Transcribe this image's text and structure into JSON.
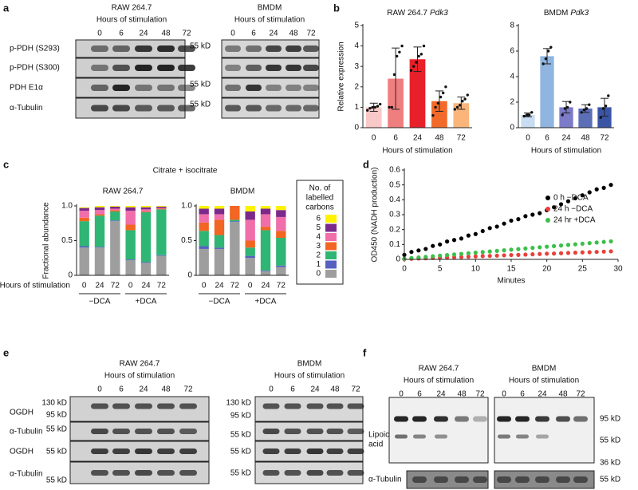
{
  "panel_labels": [
    "a",
    "b",
    "c",
    "d",
    "e",
    "f"
  ],
  "blots": {
    "a": {
      "headers": [
        {
          "cell_line": "RAW 264.7",
          "axis": "Hours of stimulation",
          "lanes": [
            "0",
            "6",
            "24",
            "48",
            "72"
          ]
        },
        {
          "cell_line": "BMDM",
          "axis": "Hours of stimulation",
          "lanes": [
            "0",
            "6",
            "24",
            "48",
            "72"
          ]
        }
      ],
      "rows": [
        "p-PDH (S293)",
        "p-PDH (S300)",
        "PDH E1α",
        "α-Tubulin"
      ],
      "markers": [
        "55 kD",
        "55 kD",
        "55 kD"
      ]
    },
    "e": {
      "headers": [
        {
          "cell_line": "RAW 264.7",
          "axis": "Hours of stimulation",
          "lanes": [
            "0",
            "6",
            "24",
            "48",
            "72"
          ]
        },
        {
          "cell_line": "BMDM",
          "axis": "Hours of stimulation",
          "lanes": [
            "0",
            "6",
            "24",
            "48",
            "72"
          ]
        }
      ],
      "rows": [
        "OGDH",
        "α-Tubulin",
        "OGDH",
        "α-Tubulin"
      ],
      "markers_left": [
        "130 kD",
        "95 kD",
        "55 kD",
        "55 kD",
        "55 kD"
      ],
      "markers_right": [
        "130 kD",
        "95 kD",
        "55 kD",
        "55 kD",
        "55 kD"
      ]
    },
    "f": {
      "headers": [
        {
          "cell_line": "RAW 264.7",
          "axis": "Hours of stimulation",
          "lanes": [
            "0",
            "6",
            "24",
            "48",
            "72"
          ]
        },
        {
          "cell_line": "BMDM",
          "axis": "Hours of stimulation",
          "lanes": [
            "0",
            "6",
            "24",
            "48",
            "72"
          ]
        }
      ],
      "band_label": [
        "Lipoic",
        "acid"
      ],
      "markers": [
        "95 kD",
        "55 kD",
        "36 kD"
      ],
      "loading_label": "α-Tubulin",
      "loading_marker": "55 kD"
    }
  },
  "chart_data": [
    {
      "type": "bar",
      "title": [
        "RAW 264.7",
        "Pdk3"
      ],
      "categories": [
        "0",
        "6",
        "24",
        "48",
        "72"
      ],
      "values": [
        1.0,
        2.4,
        3.35,
        1.3,
        1.2
      ],
      "errors": [
        0.2,
        1.5,
        0.6,
        0.5,
        0.3
      ],
      "points": [
        [
          0.85,
          0.95,
          1.0,
          1.0,
          1.05,
          1.15
        ],
        [
          1.0,
          1.0,
          2.6,
          3.5,
          3.7,
          4.0
        ],
        [
          2.8,
          3.0,
          3.2,
          3.5,
          3.6,
          4.0
        ],
        [
          0.6,
          1.0,
          1.2,
          1.5,
          1.7,
          2.0
        ],
        [
          0.9,
          1.0,
          1.1,
          1.3,
          1.4,
          1.6
        ]
      ],
      "colors": [
        "#f8c9c8",
        "#ef7f7f",
        "#e8202a",
        "#f26b2a",
        "#fbb57a"
      ],
      "ylim": [
        0,
        5
      ],
      "yticks": [
        0,
        1,
        2,
        3,
        4,
        5
      ],
      "ylabel": "Relative expression",
      "xlabel": "Hours of stimulation"
    },
    {
      "type": "bar",
      "title": [
        "BMDM",
        "Pdk3"
      ],
      "categories": [
        "0",
        "6",
        "24",
        "48",
        "72"
      ],
      "values": [
        1.0,
        5.6,
        1.6,
        1.5,
        1.6
      ],
      "errors": [
        0.15,
        0.6,
        0.45,
        0.3,
        0.7
      ],
      "points": [
        [
          0.9,
          1.0,
          1.0,
          1.2
        ],
        [
          5.0,
          5.4,
          6.0,
          6.3
        ],
        [
          1.0,
          1.5,
          1.6,
          2.0
        ],
        [
          1.2,
          1.4,
          1.5,
          1.8
        ],
        [
          0.8,
          1.5,
          1.7,
          2.5
        ]
      ],
      "colors": [
        "#c8dcf2",
        "#8fb5e0",
        "#7b7bc8",
        "#5b6fb8",
        "#3a55a5"
      ],
      "ylim": [
        0,
        8
      ],
      "yticks": [
        0,
        2,
        4,
        6,
        8
      ],
      "xlabel": "Hours of stimulation"
    },
    {
      "type": "stacked_bar",
      "title": "Citrate + isocitrate",
      "subtitle": "RAW 264.7",
      "categories": [
        "0",
        "24",
        "72",
        "0",
        "24",
        "72"
      ],
      "groups": [
        "−DCA",
        "+DCA"
      ],
      "xlabel": "Hours of stimulation",
      "ylabel": "Fractional abundance",
      "ylim": [
        0,
        1
      ],
      "yticks": [
        0,
        0.5,
        {
          "value": 1,
          "label": "1.0"
        }
      ],
      "series": [
        {
          "color": "#9e9e9e",
          "values": [
            0.4,
            0.4,
            0.78,
            0.22,
            0.18,
            0.28
          ]
        },
        {
          "color": "#5560c0",
          "values": [
            0.02,
            0.01,
            0.01,
            0.01,
            0.01,
            0.01
          ]
        },
        {
          "color": "#2fb574",
          "values": [
            0.36,
            0.45,
            0.13,
            0.42,
            0.72,
            0.66
          ]
        },
        {
          "color": "#f26522",
          "values": [
            0.05,
            0.02,
            0.02,
            0.08,
            0.01,
            0.01
          ]
        },
        {
          "color": "#f06eaa",
          "values": [
            0.1,
            0.06,
            0.02,
            0.2,
            0.03,
            0.01
          ]
        },
        {
          "color": "#7b2a8c",
          "values": [
            0.04,
            0.04,
            0.03,
            0.05,
            0.03,
            0.02
          ]
        },
        {
          "color": "#fff200",
          "values": [
            0.01,
            0.02,
            0.01,
            0.02,
            0.02,
            0.01
          ]
        }
      ]
    },
    {
      "type": "stacked_bar",
      "subtitle": "BMDM",
      "categories": [
        "0",
        "24",
        "72",
        "0",
        "24",
        "72"
      ],
      "groups": [
        "−DCA",
        "+DCA"
      ],
      "ylim": [
        0,
        1
      ],
      "yticks": [
        0,
        0.5,
        {
          "value": 1,
          "label": "1.0"
        }
      ],
      "legend_title": [
        "No. of",
        "labelled",
        "carbons"
      ],
      "series": [
        {
          "name": "0",
          "color": "#9e9e9e",
          "values": [
            0.38,
            0.38,
            0.77,
            0.25,
            0.06,
            0.12
          ]
        },
        {
          "name": "1",
          "color": "#5560c0",
          "values": [
            0.04,
            0.02,
            0.01,
            0.03,
            0.01,
            0.02
          ]
        },
        {
          "name": "2",
          "color": "#2fb574",
          "values": [
            0.22,
            0.18,
            0.02,
            0.12,
            0.58,
            0.4
          ]
        },
        {
          "name": "3",
          "color": "#f26522",
          "values": [
            0.12,
            0.22,
            0.2,
            0.1,
            0.05,
            0.1
          ]
        },
        {
          "name": "4",
          "color": "#f06eaa",
          "values": [
            0.12,
            0.08,
            0,
            0.3,
            0.18,
            0.2
          ]
        },
        {
          "name": "5",
          "color": "#7b2a8c",
          "values": [
            0.08,
            0.08,
            0,
            0.12,
            0.08,
            0.1
          ]
        },
        {
          "name": "6",
          "color": "#fff200",
          "values": [
            0.04,
            0.04,
            0,
            0.08,
            0.04,
            0.06
          ]
        }
      ]
    },
    {
      "type": "scatter",
      "xlabel": "Minutes",
      "ylabel": "OD450 (NADH production)",
      "x": [
        0,
        1,
        2,
        3,
        4,
        5,
        6,
        7,
        8,
        9,
        10,
        11,
        12,
        13,
        14,
        15,
        16,
        17,
        18,
        19,
        20,
        21,
        22,
        23,
        24,
        25,
        26,
        27,
        28,
        29
      ],
      "xlim": [
        0,
        30
      ],
      "xticks": [
        0,
        5,
        10,
        15,
        20,
        25,
        30
      ],
      "ylim": [
        0,
        0.6
      ],
      "yticks": [
        0,
        0.1,
        0.2,
        0.3,
        0.4,
        0.5,
        0.6
      ],
      "legend": "right",
      "series": [
        {
          "name": "0 h −DCA",
          "color": "#000000",
          "values": [
            0.03,
            0.05,
            0.06,
            0.07,
            0.09,
            0.1,
            0.12,
            0.13,
            0.14,
            0.16,
            0.17,
            0.19,
            0.21,
            0.22,
            0.24,
            0.26,
            0.27,
            0.29,
            0.3,
            0.31,
            0.33,
            0.35,
            0.37,
            0.39,
            0.41,
            0.43,
            0.45,
            0.47,
            0.48,
            0.5
          ]
        },
        {
          "name": "24 h −DCA",
          "color": "#e8403a",
          "values": [
            0.002,
            0.004,
            0.006,
            0.007,
            0.009,
            0.011,
            0.013,
            0.014,
            0.016,
            0.018,
            0.02,
            0.022,
            0.023,
            0.025,
            0.027,
            0.029,
            0.03,
            0.032,
            0.034,
            0.036,
            0.038,
            0.039,
            0.041,
            0.043,
            0.045,
            0.047,
            0.048,
            0.05,
            0.052,
            0.054
          ]
        },
        {
          "name": "24 hr +DCA",
          "color": "#3cbf4a",
          "values": [
            0.005,
            0.009,
            0.013,
            0.017,
            0.021,
            0.025,
            0.029,
            0.033,
            0.037,
            0.041,
            0.045,
            0.049,
            0.053,
            0.057,
            0.061,
            0.065,
            0.069,
            0.073,
            0.077,
            0.081,
            0.085,
            0.089,
            0.093,
            0.097,
            0.101,
            0.105,
            0.109,
            0.113,
            0.117,
            0.121
          ]
        }
      ]
    }
  ]
}
